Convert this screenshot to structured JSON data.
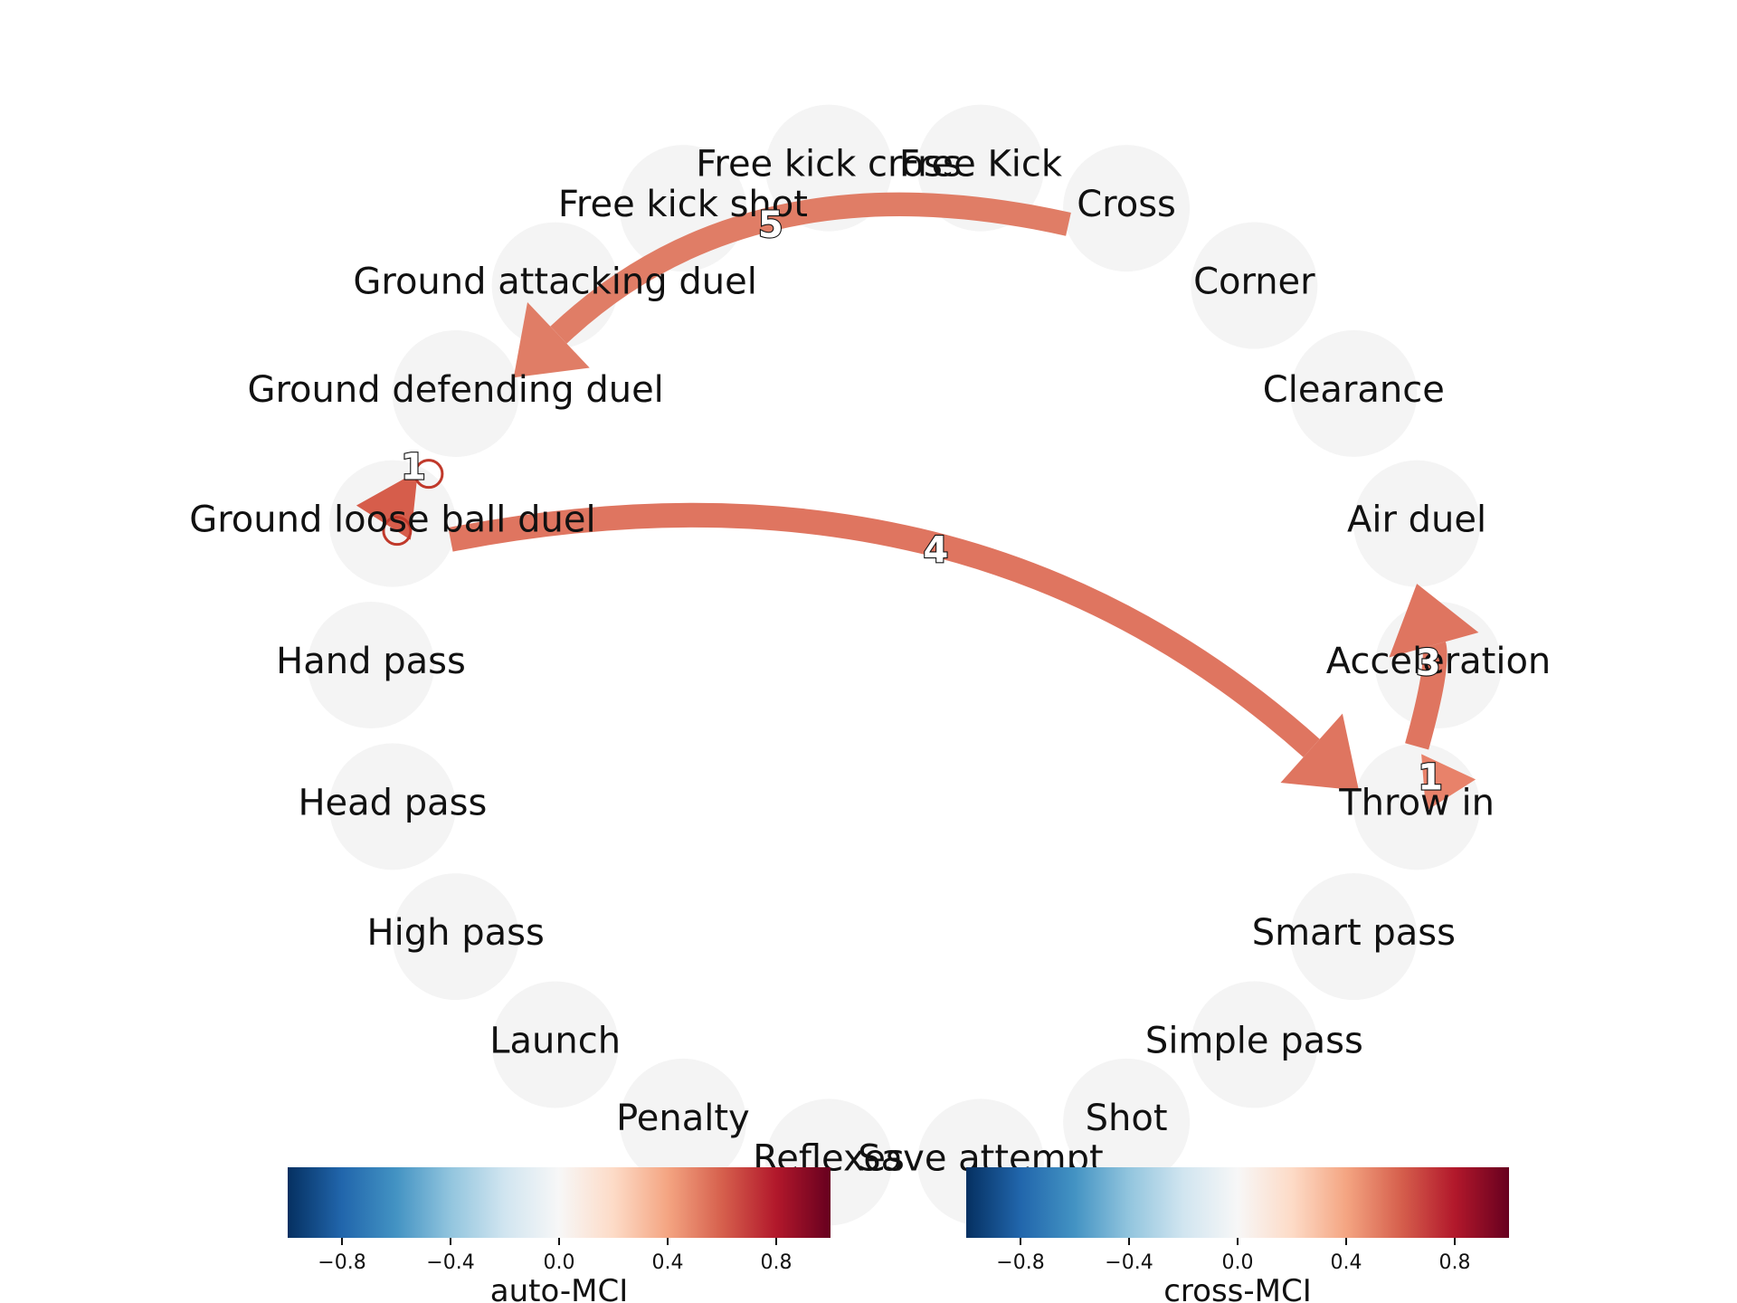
{
  "nodes": [
    {
      "label": "Free Kick"
    },
    {
      "label": "Cross"
    },
    {
      "label": "Corner"
    },
    {
      "label": "Clearance"
    },
    {
      "label": "Air duel"
    },
    {
      "label": "Acceleration"
    },
    {
      "label": "Throw in"
    },
    {
      "label": "Smart pass"
    },
    {
      "label": "Simple pass"
    },
    {
      "label": "Shot"
    },
    {
      "label": "Save attempt"
    },
    {
      "label": "Reflexes"
    },
    {
      "label": "Penalty"
    },
    {
      "label": "Launch"
    },
    {
      "label": "High pass"
    },
    {
      "label": "Head pass"
    },
    {
      "label": "Hand pass"
    },
    {
      "label": "Ground loose ball duel"
    },
    {
      "label": "Ground defending duel"
    },
    {
      "label": "Ground attacking duel"
    },
    {
      "label": "Free kick shot"
    },
    {
      "label": "Free kick cross"
    }
  ],
  "edges": [
    {
      "source": "Cross",
      "target": "Ground defending duel",
      "lag_label": "5",
      "value": 0.45,
      "color": "#e07d66"
    },
    {
      "source": "Ground loose ball duel",
      "target": "Throw in",
      "lag_label": "4",
      "value": 0.5,
      "color": "#df7560"
    },
    {
      "source": "Throw in",
      "target": "Air duel",
      "lag_label": "3",
      "value": 0.5,
      "color": "#df7560"
    }
  ],
  "auto_links": [
    {
      "node": "Ground loose ball duel",
      "lag_label": "1",
      "value": 0.55,
      "color": "#d65d4b"
    },
    {
      "node": "Throw in",
      "lag_label": "1",
      "value": 0.42,
      "color": "#e8826a"
    }
  ],
  "node_color": "#f4f4f4",
  "colorbars": [
    {
      "label": "auto-MCI",
      "ticks": [
        "−0.8",
        "−0.4",
        "0.0",
        "0.4",
        "0.8"
      ],
      "range": [
        -1,
        1
      ]
    },
    {
      "label": "cross-MCI",
      "ticks": [
        "−0.8",
        "−0.4",
        "0.0",
        "0.4",
        "0.8"
      ],
      "range": [
        -1,
        1
      ]
    }
  ],
  "colormap": "RdBu_r"
}
